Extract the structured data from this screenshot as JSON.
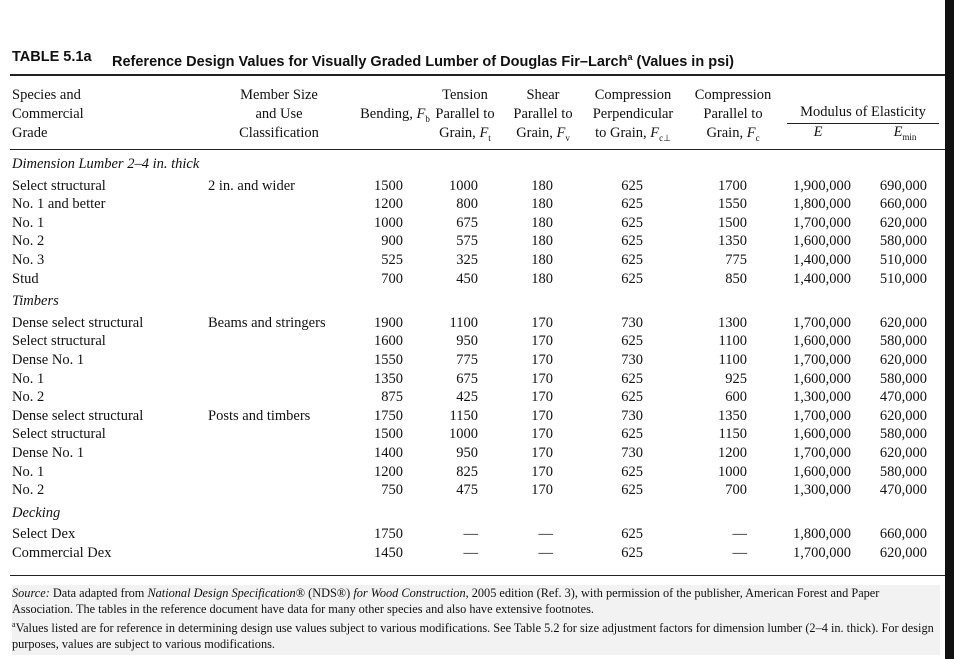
{
  "header": {
    "table_label": "TABLE 5.1a",
    "title": "Reference Design Values for Visually Graded Lumber of Douglas Fir–Larch",
    "superscript": "a",
    "units": "(Values in psi)"
  },
  "columns": [
    {
      "lines": [
        "Species and",
        "Commercial",
        "Grade"
      ]
    },
    {
      "lines": [
        "Member Size",
        "and Use",
        "Classification"
      ]
    },
    {
      "lines": [
        "Bending,"
      ],
      "symbol": "F",
      "sub": "b"
    },
    {
      "lines": [
        "Tension",
        "Parallel to",
        "Grain,"
      ],
      "symbol": "F",
      "sub": "t"
    },
    {
      "lines": [
        "Shear",
        "Parallel to",
        "Grain,"
      ],
      "symbol": "F",
      "sub": "v"
    },
    {
      "lines": [
        "Compression",
        "Perpendicular",
        "to Grain,"
      ],
      "symbol": "F",
      "sub": "c⊥"
    },
    {
      "lines": [
        "Compression",
        "Parallel to",
        "Grain,"
      ],
      "symbol": "F",
      "sub": "c"
    },
    {
      "lines": [],
      "symbol": "E"
    },
    {
      "lines": [],
      "symbol": "E",
      "sub": "min"
    }
  ],
  "column_group": {
    "label": "Modulus of Elasticity"
  },
  "sections": [
    {
      "heading": "Dimension Lumber 2–4 in. thick",
      "rows": [
        [
          "Select structural",
          "2 in. and wider",
          "1500",
          "1000",
          "180",
          "625",
          "1700",
          "1,900,000",
          "690,000"
        ],
        [
          "No. 1 and better",
          null,
          "1200",
          "800",
          "180",
          "625",
          "1550",
          "1,800,000",
          "660,000"
        ],
        [
          "No. 1",
          null,
          "1000",
          "675",
          "180",
          "625",
          "1500",
          "1,700,000",
          "620,000"
        ],
        [
          "No. 2",
          null,
          "900",
          "575",
          "180",
          "625",
          "1350",
          "1,600,000",
          "580,000"
        ],
        [
          "No. 3",
          null,
          "525",
          "325",
          "180",
          "625",
          "775",
          "1,400,000",
          "510,000"
        ],
        [
          "Stud",
          null,
          "700",
          "450",
          "180",
          "625",
          "850",
          "1,400,000",
          "510,000"
        ]
      ]
    },
    {
      "heading": "Timbers",
      "rows": [
        [
          "Dense select structural",
          "Beams and stringers",
          "1900",
          "1100",
          "170",
          "730",
          "1300",
          "1,700,000",
          "620,000"
        ],
        [
          "Select structural",
          null,
          "1600",
          "950",
          "170",
          "625",
          "1100",
          "1,600,000",
          "580,000"
        ],
        [
          "Dense No. 1",
          null,
          "1550",
          "775",
          "170",
          "730",
          "1100",
          "1,700,000",
          "620,000"
        ],
        [
          "No. 1",
          null,
          "1350",
          "675",
          "170",
          "625",
          "925",
          "1,600,000",
          "580,000"
        ],
        [
          "No. 2",
          null,
          "875",
          "425",
          "170",
          "625",
          "600",
          "1,300,000",
          "470,000"
        ],
        [
          "Dense select structural",
          "Posts and timbers",
          "1750",
          "1150",
          "170",
          "730",
          "1350",
          "1,700,000",
          "620,000"
        ],
        [
          "Select structural",
          null,
          "1500",
          "1000",
          "170",
          "625",
          "1150",
          "1,600,000",
          "580,000"
        ],
        [
          "Dense No. 1",
          null,
          "1400",
          "950",
          "170",
          "730",
          "1200",
          "1,700,000",
          "620,000"
        ],
        [
          "No. 1",
          null,
          "1200",
          "825",
          "170",
          "625",
          "1000",
          "1,600,000",
          "580,000"
        ],
        [
          "No. 2",
          null,
          "750",
          "475",
          "170",
          "625",
          "700",
          "1,300,000",
          "470,000"
        ]
      ]
    },
    {
      "heading": "Decking",
      "rows": [
        [
          "Select Dex",
          null,
          "1750",
          "—",
          "—",
          "625",
          "—",
          "1,800,000",
          "660,000"
        ],
        [
          "Commercial Dex",
          null,
          "1450",
          "—",
          "—",
          "625",
          "—",
          "1,700,000",
          "620,000"
        ]
      ]
    }
  ],
  "footnotes": {
    "source_label": "Source:",
    "source_a": " Data adapted from ",
    "source_italic_1": "National Design Specification",
    "source_b": "® (NDS®) ",
    "source_italic_2": "for Wood Construction",
    "source_c": ", 2005 edition (Ref. 3), with permission of the publisher, American Forest and Paper Association. The tables in the reference document have data for many other species and also have extensive footnotes.",
    "note_mark": "a",
    "note": "Values listed are for reference in determining design use values subject to various modifications. See Table 5.2 for size adjustment factors for dimension lumber (2–4 in. thick). For design purposes, values are subject to various modifications."
  }
}
